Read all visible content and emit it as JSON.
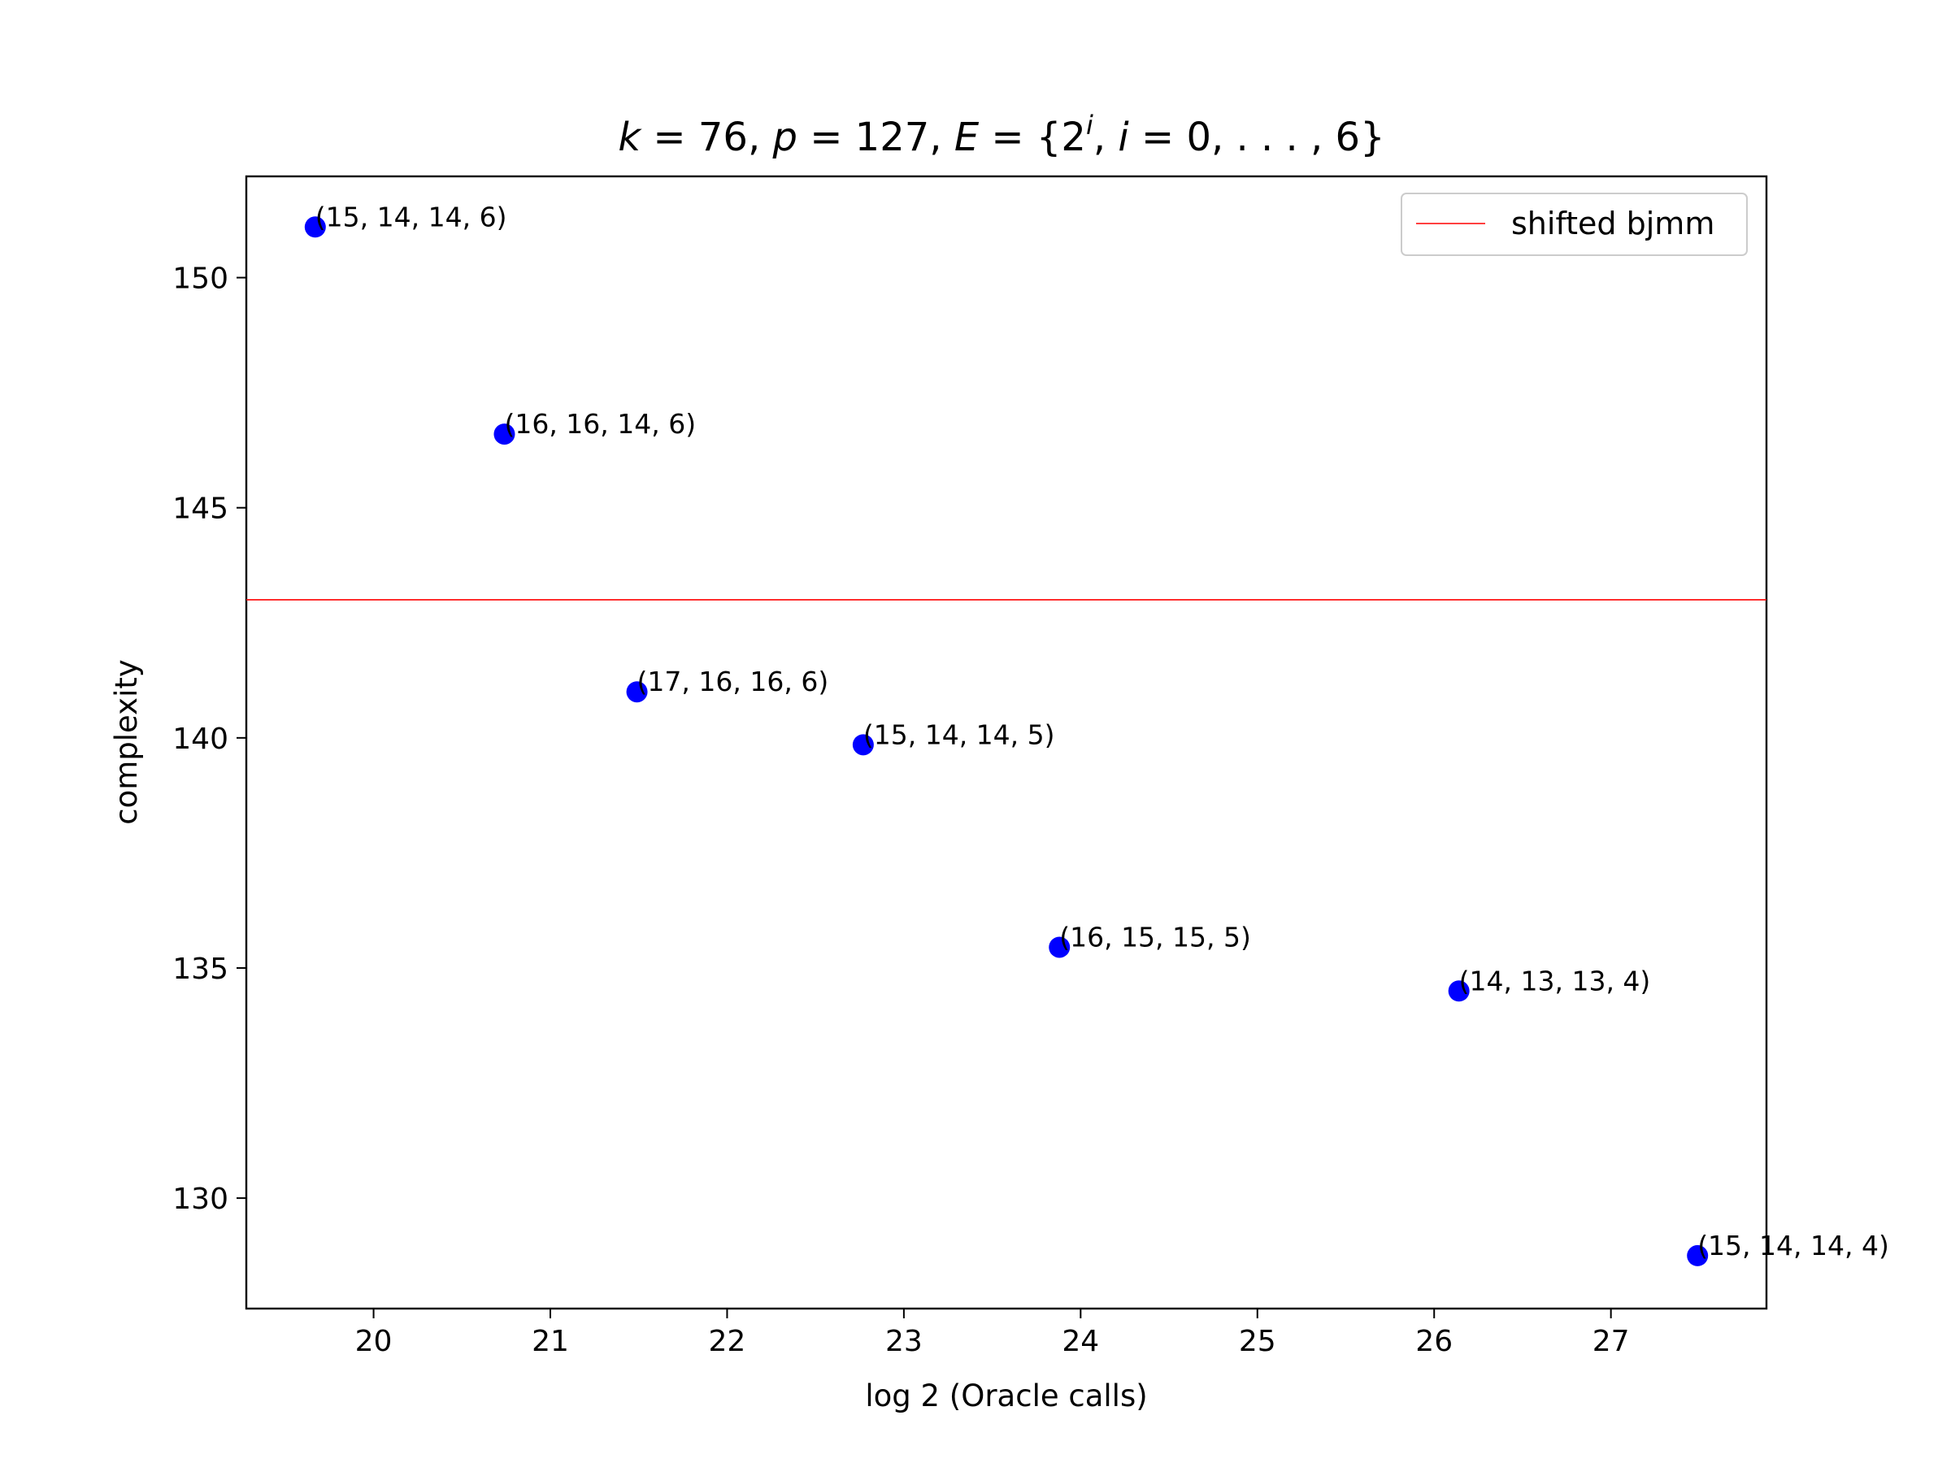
{
  "chart_data": {
    "type": "scatter",
    "title": "k = 76, p = 127, E = {2^i, i = 0, . . . , 6}",
    "title_parts": {
      "k_var": "k",
      "k_eq": " = 76, ",
      "p_var": "p",
      "p_eq": " = 127, ",
      "e_var": "E",
      "e_eq": " = {2",
      "sup": "i",
      "comma": ", ",
      "i_var": "i",
      "tail": " = 0, . . . , 6}"
    },
    "xlabel": "log 2 (Oracle calls)",
    "ylabel": "complexity",
    "xlim": [
      19.28,
      27.88
    ],
    "ylim": [
      127.6,
      152.2
    ],
    "xticks": [
      20,
      21,
      22,
      23,
      24,
      25,
      26,
      27
    ],
    "yticks": [
      130,
      135,
      140,
      145,
      150
    ],
    "grid": false,
    "legend_position": "top-right",
    "point_color": "#0000ff",
    "points": [
      {
        "x": 19.67,
        "y": 151.1,
        "label": "(15, 14, 14, 6)"
      },
      {
        "x": 20.74,
        "y": 146.6,
        "label": "(16, 16, 14, 6)"
      },
      {
        "x": 21.49,
        "y": 141.0,
        "label": "(17, 16, 16, 6)"
      },
      {
        "x": 22.77,
        "y": 139.85,
        "label": "(15, 14, 14, 5)"
      },
      {
        "x": 23.88,
        "y": 135.45,
        "label": "(16, 15, 15, 5)"
      },
      {
        "x": 26.14,
        "y": 134.5,
        "label": "(14, 13, 13, 4)"
      },
      {
        "x": 27.49,
        "y": 128.75,
        "label": "(15, 14, 14, 4)"
      }
    ],
    "reference_line": {
      "name": "shifted bjmm",
      "y": 143.0,
      "color": "#ff0000"
    }
  }
}
